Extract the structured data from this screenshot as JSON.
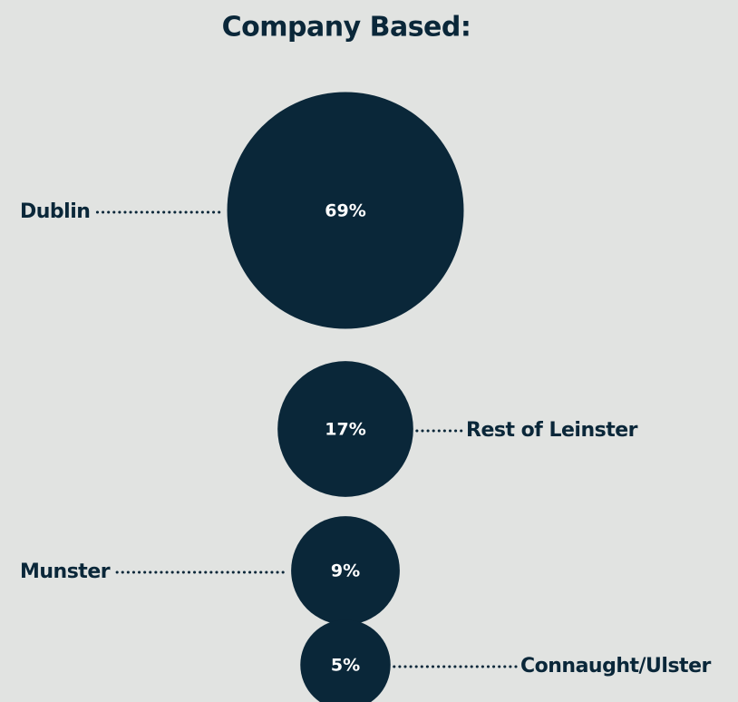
{
  "chart_data": {
    "type": "bubble",
    "title": "Company Based:",
    "categories": [
      "Dublin",
      "Rest of Leinster",
      "Munster",
      "Connaught/Ulster"
    ],
    "values": [
      69,
      17,
      9,
      5
    ],
    "value_labels": [
      "69%",
      "17%",
      "9%",
      "5%"
    ],
    "color": "#0a2739"
  }
}
